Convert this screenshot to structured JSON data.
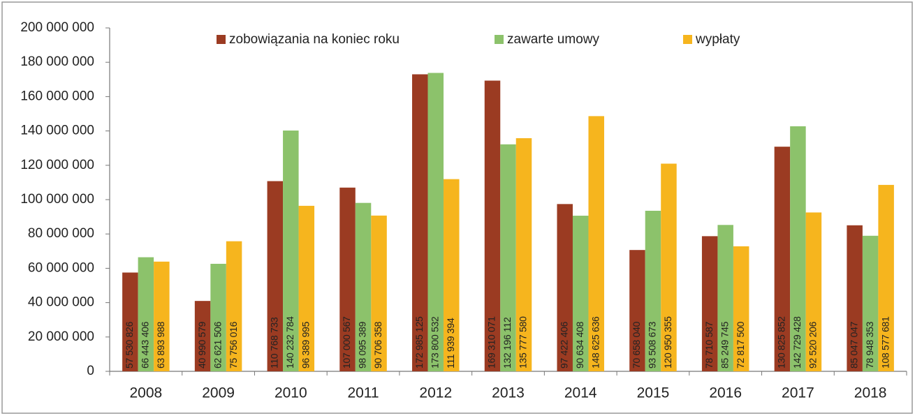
{
  "chart_data": {
    "type": "bar",
    "categories": [
      "2008",
      "2009",
      "2010",
      "2011",
      "2012",
      "2013",
      "2014",
      "2015",
      "2016",
      "2017",
      "2018"
    ],
    "series": [
      {
        "name": "zobowiązania na koniec roku",
        "color": "#9b3b22",
        "values": [
          57530826,
          40990579,
          110768733,
          107000567,
          172985125,
          169310071,
          97422406,
          70658040,
          78710587,
          130825852,
          85047047
        ],
        "value_labels": [
          "57 530 826",
          "40 990 579",
          "110 768 733",
          "107 000 567",
          "172 985 125",
          "169 310 071",
          "97 422 406",
          "70 658 040",
          "78 710 587",
          "130 825 852",
          "85 047 047"
        ]
      },
      {
        "name": "zawarte umowy",
        "color": "#8cc26b",
        "values": [
          66443406,
          62621506,
          140232784,
          98095389,
          173800532,
          132196112,
          90634408,
          93508673,
          85249745,
          142729428,
          78948353
        ],
        "value_labels": [
          "66 443 406",
          "62 621 506",
          "140 232 784",
          "98 095 389",
          "173 800 532",
          "132 196 112",
          "90 634 408",
          "93 508 673",
          "85 249 745",
          "142 729 428",
          "78 948 353"
        ]
      },
      {
        "name": "wypłaty",
        "color": "#f6b51e",
        "values": [
          63893988,
          75756016,
          96389995,
          90706358,
          111939394,
          135777580,
          148625636,
          120950355,
          72817500,
          92520206,
          108577681
        ],
        "value_labels": [
          "63 893 988",
          "75 756 016",
          "96 389 995",
          "90 706 358",
          "111 939 394",
          "135 777 580",
          "148 625 636",
          "120 950 355",
          "72 817 500",
          "92 520 206",
          "108 577 681"
        ]
      }
    ],
    "ylim": [
      0,
      200000000
    ],
    "yticks": [
      0,
      {
        "value": 20000000,
        "label": "20 000 000"
      },
      {
        "value": 40000000,
        "label": "40 000 000"
      },
      {
        "value": 60000000,
        "label": "60 000 000"
      },
      {
        "value": 80000000,
        "label": "80 000 000"
      },
      {
        "value": 100000000,
        "label": "100 000 000"
      },
      {
        "value": 120000000,
        "label": "120 000 000"
      },
      {
        "value": 140000000,
        "label": "140 000 000"
      },
      {
        "value": 160000000,
        "label": "160 000 000"
      },
      {
        "value": 180000000,
        "label": "180 000 000"
      },
      {
        "value": 200000000,
        "label": "200 000 000"
      }
    ],
    "legend": "top",
    "grid": false
  }
}
